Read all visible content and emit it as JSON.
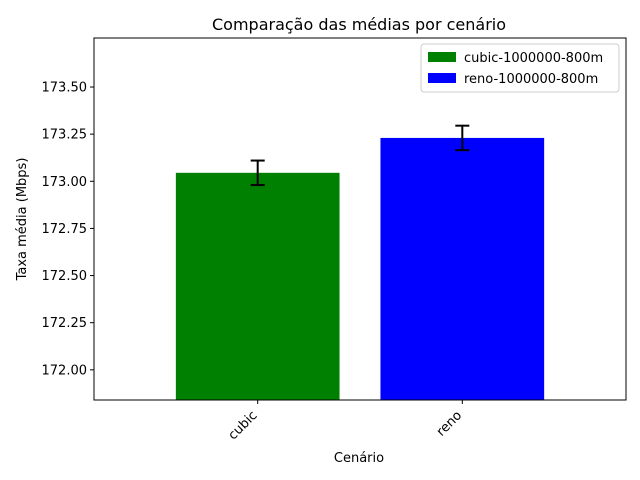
{
  "chart_data": {
    "type": "bar",
    "title": "Comparação das médias por cenário",
    "xlabel": "Cenário",
    "ylabel": "Taxa média (Mbps)",
    "categories": [
      "cubic",
      "reno"
    ],
    "values": [
      173.045,
      173.23
    ],
    "errors": [
      0.065,
      0.065
    ],
    "colors": [
      "#008000",
      "#0000ff"
    ],
    "legend": [
      "cubic-1000000-800m",
      "reno-1000000-800m"
    ],
    "legend_position": "top-right",
    "ylim": [
      171.84,
      173.76
    ],
    "yticks": [
      172.0,
      172.25,
      172.5,
      172.75,
      173.0,
      173.25,
      173.5
    ],
    "ytick_labels": [
      "172.00",
      "172.25",
      "172.50",
      "172.75",
      "173.00",
      "173.25",
      "173.50"
    ],
    "grid": false
  }
}
